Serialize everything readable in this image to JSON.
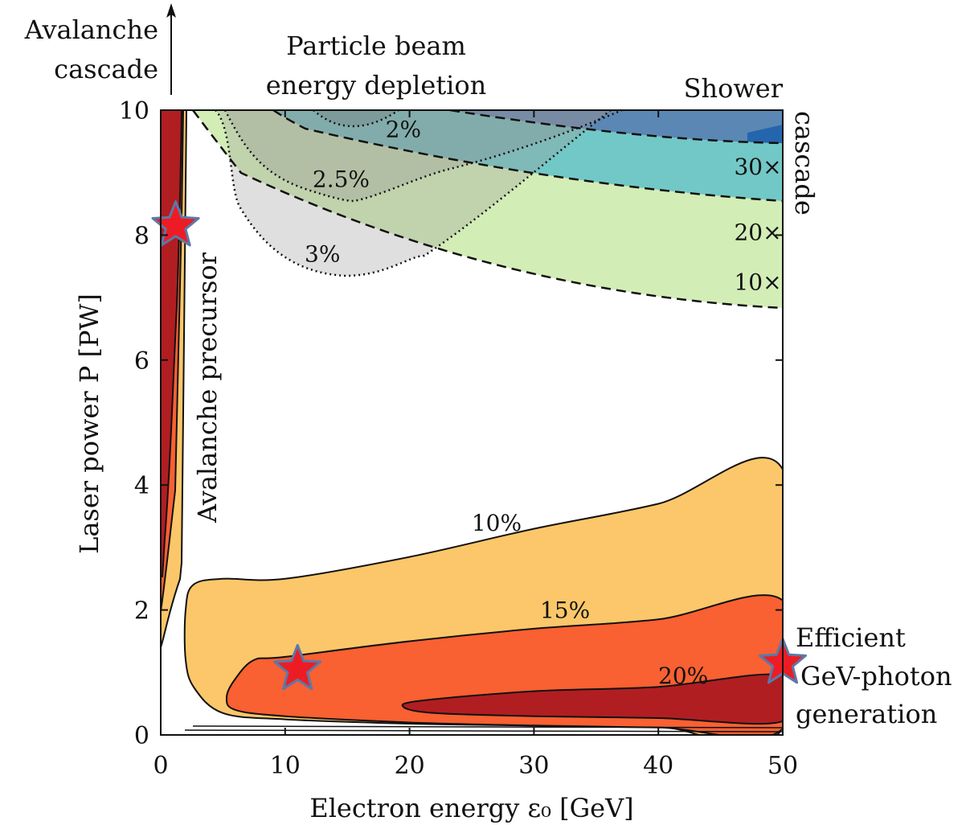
{
  "chart_data": {
    "type": "contour",
    "xlabel": "Electron energy ε₀ [GeV]",
    "ylabel": "Laser power P [PW]",
    "xlim": [
      0,
      50
    ],
    "ylim": [
      0,
      10
    ],
    "xticks": [
      "0",
      "10",
      "20",
      "30",
      "40",
      "50"
    ],
    "yticks": [
      "0",
      "2",
      "4",
      "6",
      "8",
      "10"
    ],
    "annotations": {
      "avalanche_cascade": [
        "Avalanche",
        "cascade"
      ],
      "particle_beam": [
        "Particle beam",
        "energy depletion"
      ],
      "shower": "Shower",
      "shower_rotated": "cascade",
      "avalanche_precursor": "Avalanche precursor",
      "efficient": [
        "Efficient",
        "GeV-photon",
        "generation"
      ]
    },
    "gev_photon_efficiency": {
      "levels": [
        {
          "label": "10%",
          "label_at": [
            27,
            3.4
          ],
          "color": "#fbc76a",
          "contour": [
            [
              2.6,
              2.4
            ],
            [
              5,
              2.5
            ],
            [
              10,
              2.5
            ],
            [
              20,
              2.85
            ],
            [
              30,
              3.3
            ],
            [
              40,
              3.7
            ],
            [
              50,
              4.25
            ],
            [
              50,
              0.13
            ],
            [
              40,
              0.13
            ],
            [
              30,
              0.15
            ],
            [
              20,
              0.18
            ],
            [
              10,
              0.25
            ],
            [
              5,
              0.35
            ],
            [
              2.7,
              0.75
            ],
            [
              2.0,
              1.2
            ],
            [
              2.0,
              2.0
            ]
          ]
        },
        {
          "label": "15%",
          "label_at": [
            32.5,
            2.0
          ],
          "color": "#f96032",
          "contour": [
            [
              7.5,
              1.2
            ],
            [
              10,
              1.25
            ],
            [
              20,
              1.5
            ],
            [
              30,
              1.7
            ],
            [
              40,
              1.85
            ],
            [
              50,
              2.15
            ],
            [
              50,
              0.1
            ],
            [
              40,
              0.12
            ],
            [
              30,
              0.15
            ],
            [
              20,
              0.2
            ],
            [
              10,
              0.3
            ],
            [
              6,
              0.4
            ],
            [
              5.3,
              0.6
            ],
            [
              6.0,
              0.9
            ]
          ]
        },
        {
          "label": "20%",
          "label_at": [
            42,
            0.95
          ],
          "color": "#b01e22",
          "contour": [
            [
              21,
              0.55
            ],
            [
              30,
              0.7
            ],
            [
              40,
              0.77
            ],
            [
              50,
              0.95
            ],
            [
              50,
              0.22
            ],
            [
              40,
              0.27
            ],
            [
              30,
              0.3
            ],
            [
              22,
              0.35
            ],
            [
              19.5,
              0.45
            ]
          ]
        }
      ]
    },
    "particle_energy_depletion": [
      {
        "label": "2%",
        "label_at": [
          19.5,
          9.7
        ]
      },
      {
        "label": "2.5%",
        "label_at": [
          14.5,
          8.9
        ]
      },
      {
        "label": "3%",
        "label_at": [
          13,
          7.7
        ]
      }
    ],
    "shower_cascade": [
      {
        "label": "10×",
        "label_at": [
          48,
          7.25
        ],
        "color": "#d3edb6"
      },
      {
        "label": "20×",
        "label_at": [
          48,
          8.05
        ],
        "color": "#45b7c5"
      },
      {
        "label": "30×",
        "label_at": [
          48,
          9.1
        ],
        "color": "#2565ad"
      }
    ],
    "stars": [
      {
        "name": "avalanche",
        "x": 1.2,
        "y": 8.15
      },
      {
        "name": "mid",
        "x": 11,
        "y": 1.05
      },
      {
        "name": "efficient",
        "x": 50,
        "y": 1.15
      }
    ]
  }
}
